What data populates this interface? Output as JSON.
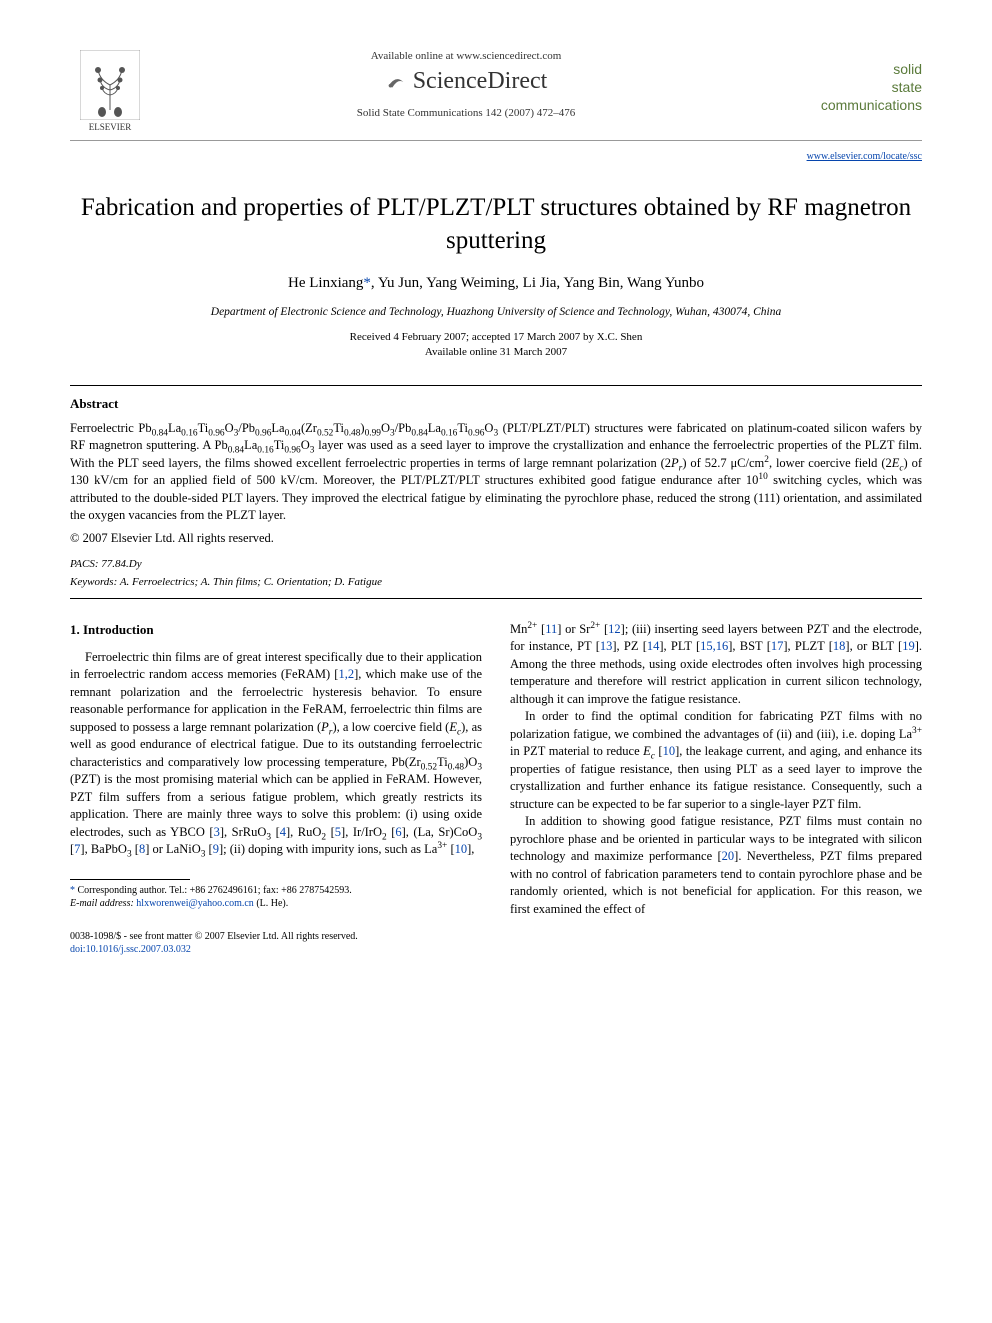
{
  "header": {
    "available_text": "Available online at www.sciencedirect.com",
    "publisher_logo": "ELSEVIER",
    "platform_logo": "ScienceDirect",
    "journal_ref": "Solid State Communications 142 (2007) 472–476",
    "journal_name_line1": "solid",
    "journal_name_line2": "state",
    "journal_name_line3": "communications",
    "journal_url": "www.elsevier.com/locate/ssc"
  },
  "article": {
    "title": "Fabrication and properties of PLT/PLZT/PLT structures obtained by RF magnetron sputtering",
    "authors_html": "He Linxiang<span class='corr-mark'>*</span>, Yu Jun, Yang Weiming, Li Jia, Yang Bin, Wang Yunbo",
    "affiliation": "Department of Electronic Science and Technology, Huazhong University of Science and Technology, Wuhan, 430074, China",
    "received": "Received 4 February 2007; accepted 17 March 2007 by X.C. Shen",
    "available_online": "Available online 31 March 2007"
  },
  "abstract": {
    "heading": "Abstract",
    "body_html": "Ferroelectric Pb<sub>0.84</sub>La<sub>0.16</sub>Ti<sub>0.96</sub>O<sub>3</sub>/Pb<sub>0.96</sub>La<sub>0.04</sub>(Zr<sub>0.52</sub>Ti<sub>0.48</sub>)<sub>0.99</sub>O<sub>3</sub>/Pb<sub>0.84</sub>La<sub>0.16</sub>Ti<sub>0.96</sub>O<sub>3</sub> (PLT/PLZT/PLT) structures were fabricated on platinum-coated silicon wafers by RF magnetron sputtering. A Pb<sub>0.84</sub>La<sub>0.16</sub>Ti<sub>0.96</sub>O<sub>3</sub> layer was used as a seed layer to improve the crystallization and enhance the ferroelectric properties of the PLZT film. With the PLT seed layers, the films showed excellent ferroelectric properties in terms of large remnant polarization (2<i>P<sub>r</sub></i>) of 52.7 μC/cm<sup>2</sup>, lower coercive field (2<i>E<sub>c</sub></i>) of 130 kV/cm for an applied field of 500 kV/cm. Moreover, the PLT/PLZT/PLT structures exhibited good fatigue endurance after 10<sup>10</sup> switching cycles, which was attributed to the double-sided PLT layers. They improved the electrical fatigue by eliminating the pyrochlore phase, reduced the strong (111) orientation, and assimilated the oxygen vacancies from the PLZT layer.",
    "copyright": "© 2007 Elsevier Ltd. All rights reserved.",
    "pacs_label": "PACS:",
    "pacs_value": "77.84.Dy",
    "keywords_label": "Keywords:",
    "keywords_value": "A. Ferroelectrics; A. Thin films; C. Orientation; D. Fatigue"
  },
  "body": {
    "section1_heading": "1. Introduction",
    "col1_p1_html": "Ferroelectric thin films are of great interest specifically due to their application in ferroelectric random access memories (FeRAM) [<span class='ref'>1,2</span>], which make use of the remnant polarization and the ferroelectric hysteresis behavior. To ensure reasonable performance for application in the FeRAM, ferroelectric thin films are supposed to possess a large remnant polarization (<i>P<sub>r</sub></i>), a low coercive field (<i>E<sub>c</sub></i>), as well as good endurance of electrical fatigue. Due to its outstanding ferroelectric characteristics and comparatively low processing temperature, Pb(Zr<sub>0.52</sub>Ti<sub>0.48</sub>)O<sub>3</sub> (PZT) is the most promising material which can be applied in FeRAM. However, PZT film suffers from a serious fatigue problem, which greatly restricts its application. There are mainly three ways to solve this problem: (i) using oxide electrodes, such as YBCO [<span class='ref'>3</span>], SrRuO<sub>3</sub> [<span class='ref'>4</span>], RuO<sub>2</sub> [<span class='ref'>5</span>], Ir/IrO<sub>2</sub> [<span class='ref'>6</span>], (La, Sr)CoO<sub>3</sub> [<span class='ref'>7</span>], BaPbO<sub>3</sub> [<span class='ref'>8</span>] or LaNiO<sub>3</sub> [<span class='ref'>9</span>]; (ii) doping with impurity ions, such as La<sup>3+</sup> [<span class='ref'>10</span>],",
    "col2_p1_html": "Mn<sup>2+</sup> [<span class='ref'>11</span>] or Sr<sup>2+</sup> [<span class='ref'>12</span>]; (iii) inserting seed layers between PZT and the electrode, for instance, PT [<span class='ref'>13</span>], PZ [<span class='ref'>14</span>], PLT [<span class='ref'>15,16</span>], BST [<span class='ref'>17</span>], PLZT [<span class='ref'>18</span>], or BLT [<span class='ref'>19</span>]. Among the three methods, using oxide electrodes often involves high processing temperature and therefore will restrict application in current silicon technology, although it can improve the fatigue resistance.",
    "col2_p2_html": "In order to find the optimal condition for fabricating PZT films with no polarization fatigue, we combined the advantages of (ii) and (iii), i.e. doping La<sup>3+</sup> in PZT material to reduce <i>E<sub>c</sub></i> [<span class='ref'>10</span>], the leakage current, and aging, and enhance its properties of fatigue resistance, then using PLT as a seed layer to improve the crystallization and further enhance its fatigue resistance. Consequently, such a structure can be expected to be far superior to a single-layer PZT film.",
    "col2_p3_html": "In addition to showing good fatigue resistance, PZT films must contain no pyrochlore phase and be oriented in particular ways to be integrated with silicon technology and maximize performance [<span class='ref'>20</span>]. Nevertheless, PZT films prepared with no control of fabrication parameters tend to contain pyrochlore phase and be randomly oriented, which is not beneficial for application. For this reason, we first examined the effect of"
  },
  "footnote": {
    "corr_html": "<span class='corr-mark'>*</span> Corresponding author. Tel.: +86 2762496161; fax: +86 2787542593.",
    "email_label": "E-mail address:",
    "email": "hlxworenwei@yahoo.com.cn",
    "email_suffix": "(L. He)."
  },
  "footer": {
    "issn_line": "0038-1098/$ - see front matter © 2007 Elsevier Ltd. All rights reserved.",
    "doi_label": "doi:",
    "doi": "10.1016/j.ssc.2007.03.032"
  },
  "colors": {
    "link": "#0645ad",
    "journal_green": "#5a7a3a",
    "text": "#000000",
    "background": "#ffffff",
    "rule": "#000000"
  },
  "typography": {
    "title_fontsize": 25,
    "authors_fontsize": 15,
    "body_fontsize": 12.5,
    "footnote_fontsize": 10,
    "font_family": "Georgia, Times New Roman, serif"
  }
}
